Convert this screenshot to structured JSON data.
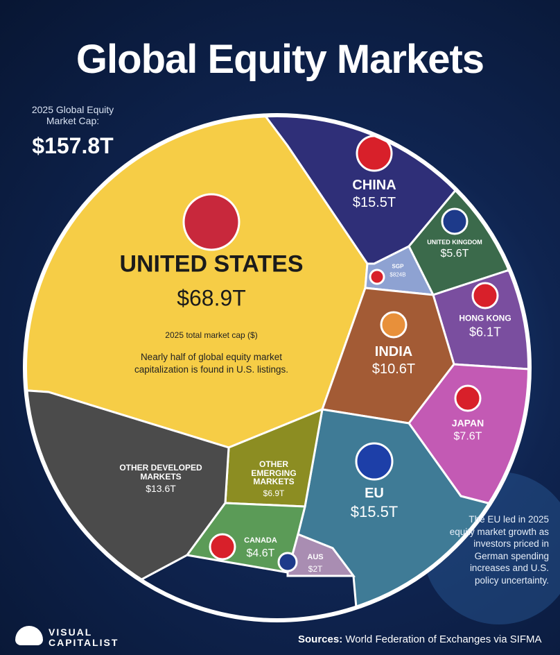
{
  "chart_data": {
    "type": "voronoi",
    "title": "Global Equity Markets",
    "total_caption": "2025 Global Equity Market Cap:",
    "total": 157.8,
    "total_label": "$157.8T",
    "categories": [
      "UNITED STATES",
      "CHINA",
      "UNITED KINGDOM",
      "SGP",
      "HONG KONG",
      "INDIA",
      "JAPAN",
      "EU",
      "OTHER EMERGING MARKETS",
      "OTHER DEVELOPED MARKETS",
      "CANADA",
      "AUS"
    ],
    "values": [
      68.9,
      15.5,
      5.6,
      0.824,
      6.1,
      10.6,
      7.6,
      15.5,
      6.9,
      13.6,
      4.6,
      2
    ],
    "value_labels": [
      "$68.9T",
      "$15.5T",
      "$5.6T",
      "$824B",
      "$6.1T",
      "$10.6T",
      "$7.6T",
      "$15.5T",
      "$6.9T",
      "$13.6T",
      "$4.6T",
      "$2T"
    ],
    "colors": [
      "#f6cd46",
      "#2f2f78",
      "#3b6a4b",
      "#8ea2d2",
      "#7a4e9f",
      "#a35b35",
      "#c35ab4",
      "#3f7b96",
      "#8c8d22",
      "#4b4b4b",
      "#5b9b57",
      "#a98db2"
    ],
    "value_caption": "2025 total market cap ($)",
    "note": "Nearly half of global equity market capitalization is found in U.S. listings.",
    "annotation": "The EU led in 2025 equity market growth as investors priced in German spending increases and U.S. policy uncertainty.",
    "source_label": "Sources:",
    "source": "World Federation of Exchanges via SIFMA",
    "brand": "VISUAL CAPITALIST"
  }
}
